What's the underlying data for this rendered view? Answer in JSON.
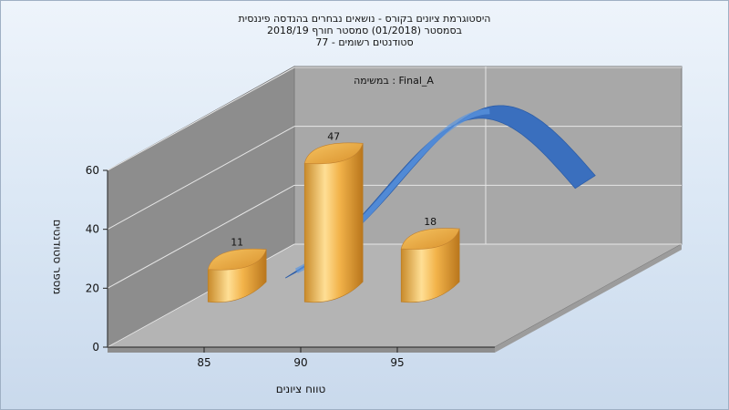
{
  "chart_data": {
    "type": "bar",
    "title_lines": [
      "היסטוגרמת ציונים בקורס - נושאים נבחרים בהנדסה פיננסית",
      "בסמסטר  (01/2018)  סמסטר חורף 2018/19",
      "סטודנטים רשומים - 77"
    ],
    "legend_text": "במשימה : Final_A",
    "xlabel": "טווח ציונים",
    "ylabel": "מספר סטודנטים",
    "x_ticks": [
      "85",
      "90",
      "95"
    ],
    "y_ticks": [
      "0",
      "20",
      "40",
      "60"
    ],
    "ylim": [
      0,
      60
    ],
    "series": [
      {
        "type": "bar",
        "x": [
          85,
          90,
          95
        ],
        "values": [
          11,
          47,
          18
        ],
        "data_labels": [
          "11",
          "47",
          "18"
        ]
      },
      {
        "type": "curve",
        "x": [
          87.5,
          92.5,
          97.5,
          102.5
        ],
        "values": [
          0.0,
          46.5,
          62.3,
          29.2
        ]
      }
    ],
    "style": {
      "bar_color": "#f0b040",
      "bar_dark": "#c07a1c",
      "curve_color": "#3266b8",
      "curve_light": "#4a88d8",
      "wall_back": "#a7a7a7",
      "wall_side": "#8a8a8a",
      "floor": "#b3b3b3"
    }
  }
}
